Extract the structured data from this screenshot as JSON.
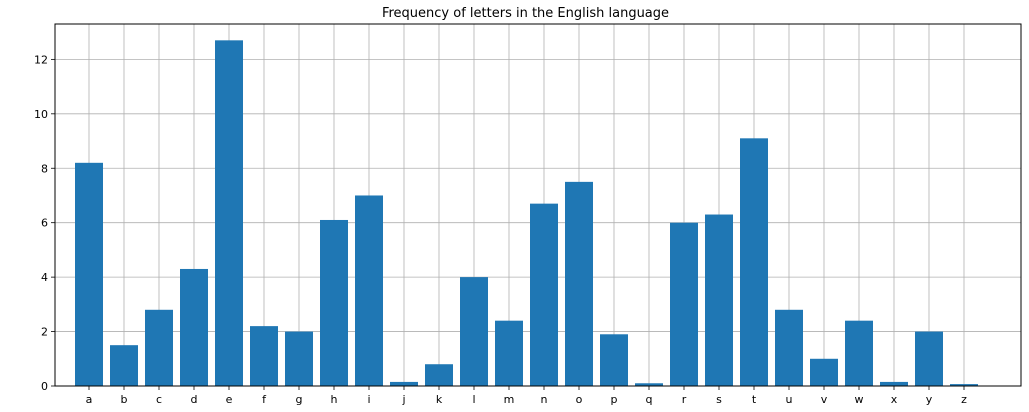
{
  "chart_data": {
    "type": "bar",
    "title": "Frequency of letters in the English language",
    "xlabel": "",
    "ylabel": "",
    "categories": [
      "a",
      "b",
      "c",
      "d",
      "e",
      "f",
      "g",
      "h",
      "i",
      "j",
      "k",
      "l",
      "m",
      "n",
      "o",
      "p",
      "q",
      "r",
      "s",
      "t",
      "u",
      "v",
      "w",
      "x",
      "y",
      "z"
    ],
    "values": [
      8.2,
      1.5,
      2.8,
      4.3,
      12.7,
      2.2,
      2.0,
      6.1,
      7.0,
      0.15,
      0.8,
      4.0,
      2.4,
      6.7,
      7.5,
      1.9,
      0.1,
      6.0,
      6.3,
      9.1,
      2.8,
      1.0,
      2.4,
      0.15,
      2.0,
      0.07
    ],
    "yticks": [
      0,
      2,
      4,
      6,
      8,
      10,
      12
    ],
    "ylim": [
      0,
      13.3
    ],
    "grid": true,
    "bar_color": "#1f77b4",
    "grid_color": "#b0b0b0"
  }
}
